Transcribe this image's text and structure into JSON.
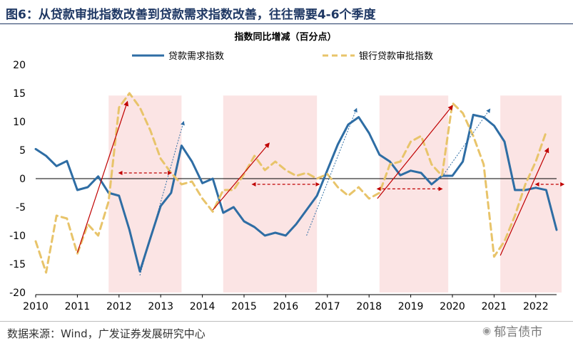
{
  "figure_title": "图6：从贷款审批指数改善到贷款需求指数改善，往往需要4-6个季度",
  "source_text": "数据来源：Wind，广发证券发展研究中心",
  "watermark_text": "郁言债市",
  "colors": {
    "demand": "#2e6da4",
    "approval": "#e8c46a",
    "shade": "#fbe4e4",
    "arrow_red": "#c00000",
    "arrow_blue": "#2e6da4",
    "title": "#1f3864"
  },
  "chart_data": {
    "type": "line",
    "title": "指数同比增减（百分点）",
    "xlabel": "",
    "ylabel": "",
    "ylim": [
      -20,
      20
    ],
    "yticks": [
      "20",
      "15",
      "10",
      "5",
      "0",
      "-5",
      "-10",
      "-15",
      "-20"
    ],
    "yticks_values": [
      20,
      15,
      10,
      5,
      0,
      -5,
      -10,
      -15,
      -20
    ],
    "xlim": [
      2010.0,
      2022.5
    ],
    "xticks": [
      "2010",
      "2011",
      "2012",
      "2013",
      "2014",
      "2015",
      "2016",
      "2017",
      "2018",
      "2019",
      "2020",
      "2021",
      "2022"
    ],
    "xticks_values": [
      2010,
      2011,
      2012,
      2013,
      2014,
      2015,
      2016,
      2017,
      2018,
      2019,
      2020,
      2021,
      2022
    ],
    "legend_position": "top",
    "series": [
      {
        "name": "贷款需求指数",
        "style": "solid",
        "points": [
          [
            2010.0,
            5.2
          ],
          [
            2010.25,
            4.0
          ],
          [
            2010.5,
            2.2
          ],
          [
            2010.75,
            3.1
          ],
          [
            2011.0,
            -2.0
          ],
          [
            2011.25,
            -1.5
          ],
          [
            2011.5,
            0.4
          ],
          [
            2011.75,
            -2.5
          ],
          [
            2012.0,
            -3.0
          ],
          [
            2012.25,
            -9.0
          ],
          [
            2012.5,
            -16.3
          ],
          [
            2012.75,
            -10.5
          ],
          [
            2013.0,
            -4.8
          ],
          [
            2013.25,
            -2.5
          ],
          [
            2013.5,
            5.8
          ],
          [
            2013.75,
            3.0
          ],
          [
            2014.0,
            -0.8
          ],
          [
            2014.25,
            0.0
          ],
          [
            2014.5,
            -6.0
          ],
          [
            2014.75,
            -5.0
          ],
          [
            2015.0,
            -7.5
          ],
          [
            2015.25,
            -8.5
          ],
          [
            2015.5,
            -10.0
          ],
          [
            2015.75,
            -9.5
          ],
          [
            2016.0,
            -10.0
          ],
          [
            2016.25,
            -8.0
          ],
          [
            2016.5,
            -5.5
          ],
          [
            2016.75,
            -3.0
          ],
          [
            2017.0,
            1.5
          ],
          [
            2017.25,
            6.0
          ],
          [
            2017.5,
            9.5
          ],
          [
            2017.75,
            10.8
          ],
          [
            2018.0,
            8.0
          ],
          [
            2018.25,
            4.2
          ],
          [
            2018.5,
            3.0
          ],
          [
            2018.75,
            0.6
          ],
          [
            2019.0,
            1.4
          ],
          [
            2019.25,
            1.0
          ],
          [
            2019.5,
            -1.0
          ],
          [
            2019.75,
            0.5
          ],
          [
            2020.0,
            0.5
          ],
          [
            2020.25,
            3.0
          ],
          [
            2020.5,
            11.2
          ],
          [
            2020.75,
            10.8
          ],
          [
            2021.0,
            9.3
          ],
          [
            2021.25,
            6.5
          ],
          [
            2021.5,
            -2.0
          ],
          [
            2021.75,
            -2.0
          ],
          [
            2022.0,
            -1.6
          ],
          [
            2022.25,
            -2.0
          ],
          [
            2022.5,
            -9.0
          ]
        ]
      },
      {
        "name": "银行贷款审批指数",
        "style": "dashed",
        "points": [
          [
            2010.0,
            -11.0
          ],
          [
            2010.25,
            -16.5
          ],
          [
            2010.5,
            -6.5
          ],
          [
            2010.75,
            -7.0
          ],
          [
            2011.0,
            -13.2
          ],
          [
            2011.25,
            -8.0
          ],
          [
            2011.5,
            -10.0
          ],
          [
            2011.75,
            -4.0
          ],
          [
            2012.0,
            12.5
          ],
          [
            2012.25,
            15.0
          ],
          [
            2012.5,
            12.5
          ],
          [
            2012.75,
            8.5
          ],
          [
            2013.0,
            3.5
          ],
          [
            2013.25,
            1.0
          ],
          [
            2013.5,
            -1.0
          ],
          [
            2013.75,
            -0.5
          ],
          [
            2014.0,
            -3.5
          ],
          [
            2014.25,
            -5.8
          ],
          [
            2014.5,
            -2.0
          ],
          [
            2014.75,
            -2.0
          ],
          [
            2015.0,
            0.8
          ],
          [
            2015.25,
            4.0
          ],
          [
            2015.5,
            1.5
          ],
          [
            2015.75,
            3.0
          ],
          [
            2016.0,
            1.5
          ],
          [
            2016.25,
            0.5
          ],
          [
            2016.5,
            1.0
          ],
          [
            2016.75,
            0.0
          ],
          [
            2017.0,
            0.8
          ],
          [
            2017.25,
            -1.5
          ],
          [
            2017.5,
            -3.0
          ],
          [
            2017.75,
            -1.5
          ],
          [
            2018.0,
            -3.5
          ],
          [
            2018.25,
            -2.5
          ],
          [
            2018.5,
            2.5
          ],
          [
            2018.75,
            3.0
          ],
          [
            2019.0,
            6.5
          ],
          [
            2019.25,
            7.5
          ],
          [
            2019.5,
            2.5
          ],
          [
            2019.75,
            0.5
          ],
          [
            2020.0,
            13.3
          ],
          [
            2020.25,
            11.5
          ],
          [
            2020.5,
            7.5
          ],
          [
            2020.75,
            2.5
          ],
          [
            2021.0,
            -13.7
          ],
          [
            2021.25,
            -11.0
          ],
          [
            2021.5,
            -6.5
          ],
          [
            2021.75,
            -1.0
          ],
          [
            2022.0,
            3.0
          ],
          [
            2022.25,
            8.2
          ]
        ]
      }
    ],
    "shaded_ranges": [
      [
        2011.75,
        2013.5
      ],
      [
        2014.5,
        2016.75
      ],
      [
        2018.25,
        2019.9
      ],
      [
        2021.15,
        2022.7
      ]
    ],
    "red_arrows": [
      [
        2011.0,
        -13.0,
        2012.2,
        13.5
      ],
      [
        2014.25,
        -5.5,
        2015.6,
        6.2
      ],
      [
        2018.2,
        -3.5,
        2020.0,
        12.8
      ],
      [
        2021.15,
        -13.5,
        2022.3,
        5.3
      ]
    ],
    "blue_arrows": [
      [
        2012.5,
        -17.0,
        2013.55,
        10.0
      ],
      [
        2016.5,
        -10.0,
        2017.7,
        12.3
      ],
      [
        2019.75,
        0.3,
        2020.9,
        12.2
      ]
    ],
    "double_arrows": [
      [
        2012.0,
        1.0,
        2013.25,
        1.0
      ],
      [
        2015.2,
        -1.0,
        2016.8,
        -1.0
      ],
      [
        2018.2,
        -1.8,
        2019.75,
        -1.8
      ],
      [
        2022.0,
        -1.0,
        2022.72,
        -1.0
      ]
    ]
  }
}
